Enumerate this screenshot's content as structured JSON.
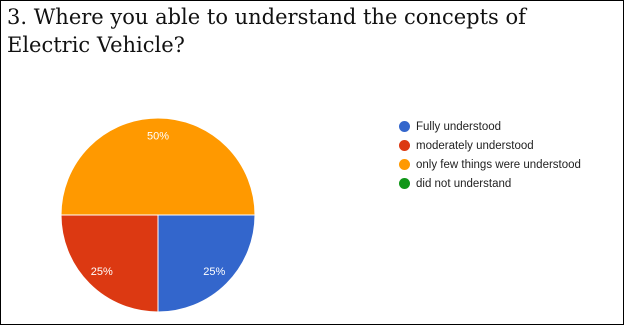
{
  "question": {
    "text": "3. Where you able to understand the concepts of Electric Vehicle?"
  },
  "chart_data": {
    "type": "pie",
    "categories": [
      "Fully understood",
      "moderately understood",
      "only few things were understood",
      "did not understand"
    ],
    "values": [
      25,
      25,
      50,
      0
    ],
    "slice_labels": [
      "25%",
      "25%",
      "50%",
      ""
    ],
    "colors": [
      "#3366cc",
      "#dc3912",
      "#ff9900",
      "#109618"
    ],
    "legend_position": "right",
    "title": ""
  }
}
